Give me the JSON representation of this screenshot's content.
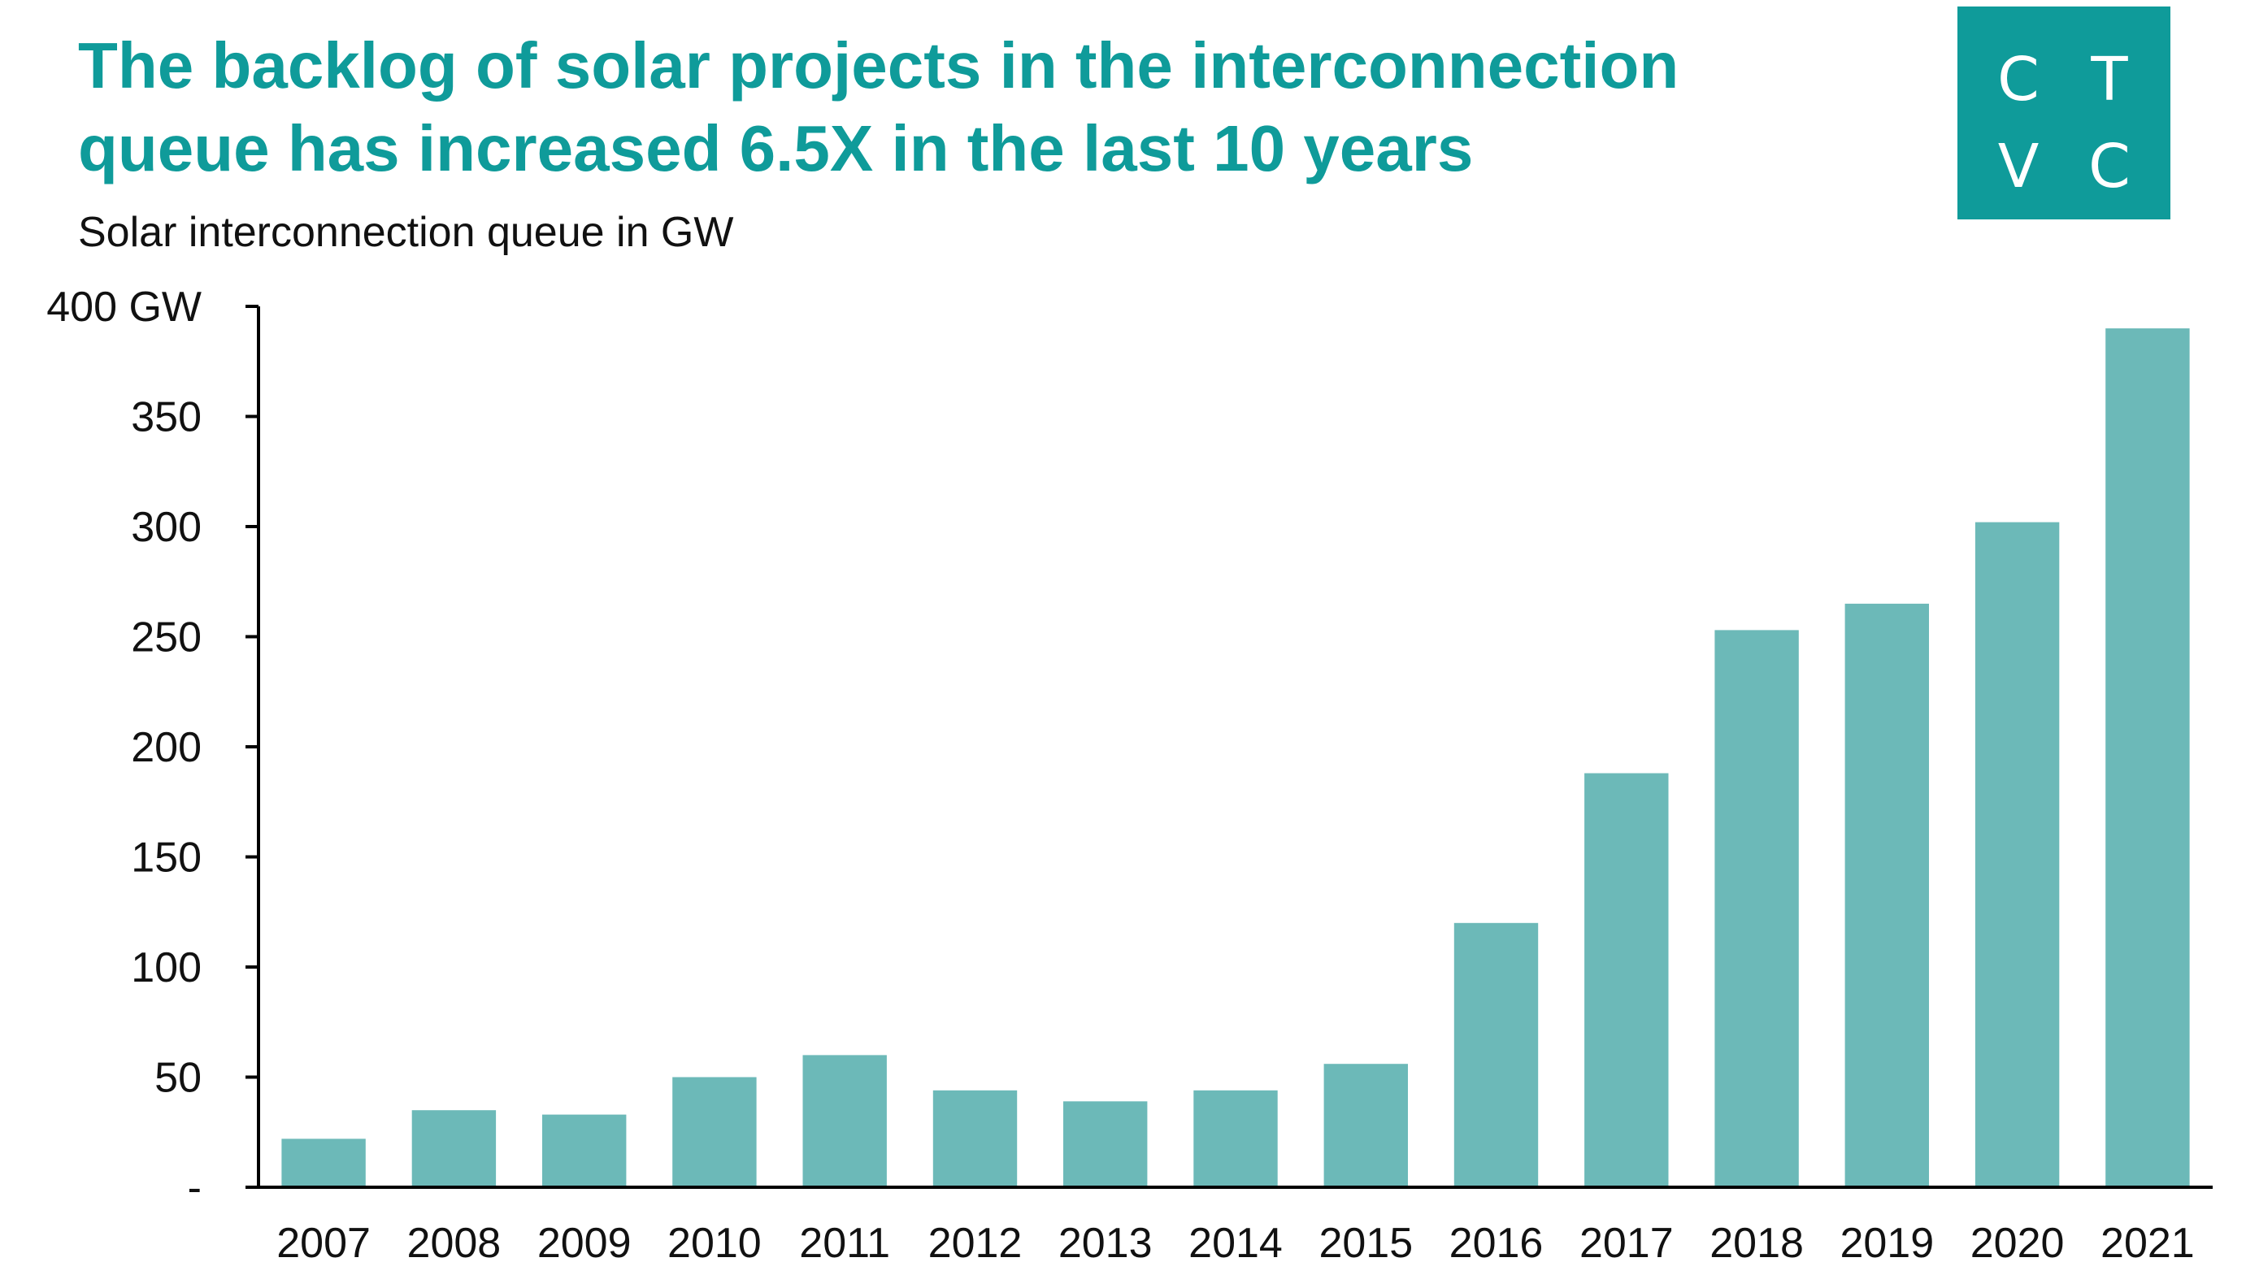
{
  "colors": {
    "accent": "#0f9b9a",
    "bar": "#6cb9b8",
    "text": "#111111",
    "axis": "#000000"
  },
  "logo": {
    "letters": [
      "C",
      "T",
      "V",
      "C"
    ]
  },
  "chart_data": {
    "type": "bar",
    "title_line1": "The backlog of solar projects in the interconnection",
    "title_line2": "queue has increased 6.5X in the last 10 years",
    "subtitle": "Solar interconnection queue in GW",
    "xlabel": "",
    "ylabel": "",
    "ylim": [
      0,
      400
    ],
    "y_ticks": [
      0,
      50,
      100,
      150,
      200,
      250,
      300,
      350,
      400
    ],
    "y_tick_labels": [
      "-",
      "50",
      "100",
      "150",
      "200",
      "250",
      "300",
      "350",
      "400 GW"
    ],
    "categories": [
      "2007",
      "2008",
      "2009",
      "2010",
      "2011",
      "2012",
      "2013",
      "2014",
      "2015",
      "2016",
      "2017",
      "2018",
      "2019",
      "2020",
      "2021"
    ],
    "values": [
      22,
      35,
      33,
      50,
      60,
      44,
      39,
      44,
      56,
      120,
      188,
      253,
      265,
      302,
      390
    ],
    "grid": false,
    "legend": "none"
  }
}
